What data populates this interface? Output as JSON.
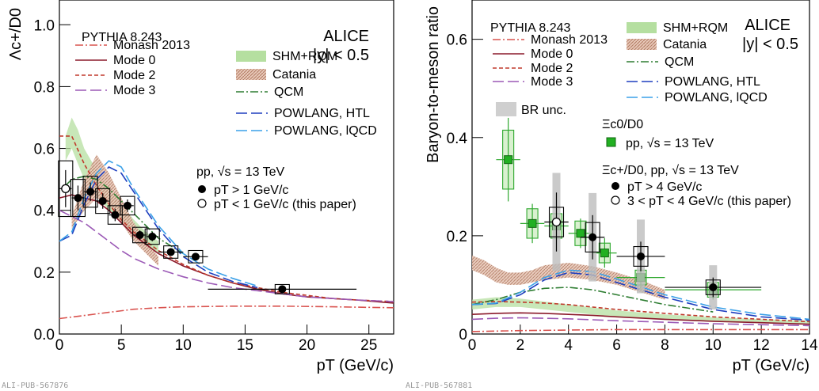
{
  "chart_data": [
    {
      "type": "line",
      "ylabel": "Λc+/D0",
      "xlabel": "pT (GeV/c)",
      "xlim": [
        0,
        27
      ],
      "ylim": [
        0,
        1.08
      ],
      "x_ticks": [
        "0",
        "5",
        "10",
        "15",
        "20",
        "25"
      ],
      "y_ticks": [
        "0.0",
        "0.2",
        "0.4",
        "0.6",
        "0.8",
        "1.0"
      ],
      "experiment": "ALICE",
      "rapidity": "|y| < 0.5",
      "generator_title": "PYTHIA 8.243",
      "dataset_label": "pp, √s = 13 TeV",
      "footer": "ALI-PUB-567876",
      "legend": [
        {
          "label": "Monash 2013",
          "color": "#d9534f",
          "style": "dashdot"
        },
        {
          "label": "Mode 0",
          "color": "#8b1a2b",
          "style": "solid"
        },
        {
          "label": "Mode 2",
          "color": "#c0392b",
          "style": "dashed"
        },
        {
          "label": "Mode 3",
          "color": "#9b59b6",
          "style": "longdash"
        },
        {
          "label": "SHM+RQM",
          "color": "#b5dfa0",
          "style": "band"
        },
        {
          "label": "Catania",
          "color": "#c9927a",
          "style": "hatched"
        },
        {
          "label": "QCM",
          "color": "#2e7d32",
          "style": "dashdot"
        },
        {
          "label": "POWLANG, HTL",
          "color": "#1f3fbf",
          "style": "longdash"
        },
        {
          "label": "POWLANG, lQCD",
          "color": "#3aa0e8",
          "style": "longdash"
        },
        {
          "label": "pT > 1 GeV/c",
          "marker": "filled-circle"
        },
        {
          "label": "pT < 1 GeV/c (this paper)",
          "marker": "open-circle"
        }
      ],
      "series": [
        {
          "name": "pT > 1 GeV/c",
          "kind": "points-filled",
          "x": [
            1.5,
            2.5,
            3.5,
            4.5,
            5.5,
            6.5,
            7.5,
            9,
            11,
            18
          ],
          "y": [
            0.44,
            0.46,
            0.43,
            0.385,
            0.415,
            0.32,
            0.315,
            0.265,
            0.25,
            0.145
          ],
          "xerr": [
            0.5,
            0.5,
            0.5,
            0.5,
            0.5,
            0.5,
            0.5,
            1,
            1,
            6
          ],
          "yerr": [
            0.04,
            0.03,
            0.025,
            0.02,
            0.02,
            0.015,
            0.015,
            0.012,
            0.012,
            0.01
          ],
          "syst": [
            0.06,
            0.05,
            0.04,
            0.03,
            0.03,
            0.025,
            0.025,
            0.02,
            0.02,
            0.015
          ]
        },
        {
          "name": "pT < 1 GeV/c (this paper)",
          "kind": "points-open",
          "x": [
            0.5
          ],
          "y": [
            0.47
          ],
          "xerr": [
            0.5
          ],
          "yerr": [
            0.06
          ],
          "syst": [
            0.09
          ]
        },
        {
          "name": "Monash 2013",
          "kind": "line",
          "x": [
            0,
            2,
            4,
            6,
            8,
            10,
            14,
            18,
            22,
            27
          ],
          "y": [
            0.05,
            0.06,
            0.07,
            0.08,
            0.085,
            0.088,
            0.09,
            0.09,
            0.088,
            0.085
          ]
        },
        {
          "name": "Mode 0",
          "kind": "line",
          "x": [
            0,
            1,
            2,
            3,
            4,
            5,
            6,
            8,
            10,
            12,
            14,
            16,
            18,
            20,
            22,
            24,
            27
          ],
          "y": [
            0.44,
            0.45,
            0.44,
            0.43,
            0.4,
            0.36,
            0.32,
            0.26,
            0.22,
            0.19,
            0.165,
            0.145,
            0.13,
            0.12,
            0.115,
            0.11,
            0.1
          ]
        },
        {
          "name": "Mode 2",
          "kind": "line",
          "x": [
            0,
            1,
            2,
            3,
            4,
            5,
            6,
            8,
            10,
            12,
            14,
            16,
            18,
            20,
            22,
            24,
            27
          ],
          "y": [
            0.64,
            0.64,
            0.55,
            0.48,
            0.42,
            0.37,
            0.33,
            0.27,
            0.225,
            0.19,
            0.165,
            0.15,
            0.135,
            0.125,
            0.115,
            0.11,
            0.105
          ]
        },
        {
          "name": "Mode 3",
          "kind": "line",
          "x": [
            0,
            1,
            2,
            3,
            4,
            5,
            6,
            8,
            10,
            12,
            14,
            16,
            18,
            20,
            22,
            24,
            27
          ],
          "y": [
            0.4,
            0.38,
            0.36,
            0.33,
            0.3,
            0.27,
            0.245,
            0.21,
            0.185,
            0.165,
            0.15,
            0.14,
            0.13,
            0.12,
            0.115,
            0.11,
            0.105
          ]
        },
        {
          "name": "SHM+RQM",
          "kind": "band",
          "x": [
            0.5,
            1,
            1.5,
            2,
            3,
            4,
            5,
            6,
            7,
            8
          ],
          "ylo": [
            0.56,
            0.6,
            0.55,
            0.5,
            0.45,
            0.4,
            0.36,
            0.32,
            0.29,
            0.26
          ],
          "yhi": [
            0.64,
            0.7,
            0.66,
            0.6,
            0.53,
            0.47,
            0.42,
            0.37,
            0.33,
            0.3
          ]
        },
        {
          "name": "Catania",
          "kind": "band",
          "x": [
            1,
            2,
            3,
            4,
            5,
            6,
            7,
            8
          ],
          "ylo": [
            0.34,
            0.4,
            0.44,
            0.42,
            0.36,
            0.3,
            0.26,
            0.22
          ],
          "yhi": [
            0.38,
            0.5,
            0.58,
            0.52,
            0.44,
            0.36,
            0.3,
            0.25
          ]
        },
        {
          "name": "QCM",
          "kind": "line",
          "x": [
            0.5,
            1,
            2,
            3,
            4,
            5,
            6,
            8,
            10
          ],
          "y": [
            0.48,
            0.5,
            0.51,
            0.5,
            0.47,
            0.43,
            0.39,
            0.31,
            0.26
          ]
        },
        {
          "name": "POWLANG, HTL",
          "kind": "line",
          "x": [
            0,
            1,
            2,
            3,
            4,
            5,
            6,
            8,
            10,
            12,
            14,
            16
          ],
          "y": [
            0.3,
            0.32,
            0.42,
            0.5,
            0.54,
            0.52,
            0.46,
            0.34,
            0.25,
            0.2,
            0.17,
            0.15
          ]
        },
        {
          "name": "POWLANG, lQCD",
          "kind": "line",
          "x": [
            0,
            1,
            2,
            3,
            4,
            5,
            6,
            8,
            10,
            12,
            14,
            16
          ],
          "y": [
            0.3,
            0.33,
            0.44,
            0.52,
            0.56,
            0.54,
            0.47,
            0.35,
            0.26,
            0.21,
            0.18,
            0.155
          ]
        }
      ]
    },
    {
      "type": "line",
      "ylabel": "Baryon-to-meson ratio",
      "xlabel": "pT (GeV/c)",
      "xlim": [
        0,
        14
      ],
      "ylim": [
        0,
        0.68
      ],
      "x_ticks": [
        "0",
        "2",
        "4",
        "6",
        "8",
        "10",
        "12",
        "14"
      ],
      "y_ticks": [
        "0",
        "0.2",
        "0.4",
        "0.6"
      ],
      "experiment": "ALICE",
      "rapidity": "|y| < 0.5",
      "generator_title": "PYTHIA 8.243",
      "br_label": "BR unc.",
      "xi0_title": "Ξc0/D0",
      "xi0_label": "pp, √s = 13 TeV",
      "xiplus_title": "Ξc+/D0, pp, √s = 13 TeV",
      "footer": "ALI-PUB-567881",
      "legend": [
        {
          "label": "Monash 2013",
          "color": "#d9534f",
          "style": "dashdot"
        },
        {
          "label": "Mode 0",
          "color": "#8b1a2b",
          "style": "solid"
        },
        {
          "label": "Mode 2",
          "color": "#c0392b",
          "style": "dashed"
        },
        {
          "label": "Mode 3",
          "color": "#9b59b6",
          "style": "longdash"
        },
        {
          "label": "SHM+RQM",
          "color": "#b5dfa0",
          "style": "band"
        },
        {
          "label": "Catania",
          "color": "#c9927a",
          "style": "hatched"
        },
        {
          "label": "QCM",
          "color": "#2e7d32",
          "style": "dashdot"
        },
        {
          "label": "POWLANG, HTL",
          "color": "#1f3fbf",
          "style": "longdash"
        },
        {
          "label": "POWLANG, lQCD",
          "color": "#3aa0e8",
          "style": "longdash"
        },
        {
          "label": "pT > 4 GeV/c",
          "marker": "filled-circle"
        },
        {
          "label": "3 < pT < 4 GeV/c (this paper)",
          "marker": "open-circle"
        }
      ],
      "series": [
        {
          "name": "pp, √s = 13 TeV",
          "kind": "points-square",
          "x": [
            1.5,
            2.5,
            3.5,
            4.5,
            5.5,
            7,
            10
          ],
          "y": [
            0.355,
            0.225,
            0.22,
            0.205,
            0.165,
            0.115,
            0.09
          ],
          "xerr": [
            0.5,
            0.5,
            0.5,
            0.5,
            0.5,
            1,
            2
          ],
          "yerr": [
            0.085,
            0.04,
            0.03,
            0.03,
            0.03,
            0.025,
            0.02
          ],
          "syst": [
            0.06,
            0.03,
            0.025,
            0.025,
            0.02,
            0.015,
            0.015
          ]
        },
        {
          "name": "pT > 4 GeV/c",
          "kind": "points-filled",
          "x": [
            5,
            7,
            10
          ],
          "y": [
            0.197,
            0.158,
            0.095
          ],
          "xerr": [
            0.5,
            1,
            2
          ],
          "yerr": [
            0.045,
            0.03,
            0.02
          ],
          "syst": [
            0.03,
            0.02,
            0.015
          ],
          "br": [
            0.09,
            0.075,
            0.045
          ]
        },
        {
          "name": "3 < pT < 4 GeV/c (this paper)",
          "kind": "points-open",
          "x": [
            3.5
          ],
          "y": [
            0.228
          ],
          "xerr": [
            0.5
          ],
          "yerr": [
            0.06
          ],
          "syst": [
            0.03
          ],
          "br": [
            0.1
          ]
        },
        {
          "name": "Monash 2013",
          "kind": "line",
          "x": [
            0,
            2,
            4,
            6,
            8,
            10,
            12,
            14
          ],
          "y": [
            0.005,
            0.007,
            0.008,
            0.009,
            0.009,
            0.009,
            0.009,
            0.009
          ]
        },
        {
          "name": "Mode 0",
          "kind": "line",
          "x": [
            0,
            1,
            2,
            3,
            4,
            5,
            6,
            8,
            10,
            12,
            14
          ],
          "y": [
            0.04,
            0.042,
            0.043,
            0.042,
            0.04,
            0.038,
            0.035,
            0.03,
            0.026,
            0.023,
            0.02
          ]
        },
        {
          "name": "Mode 2",
          "kind": "line",
          "x": [
            0,
            1,
            2,
            3,
            4,
            5,
            6,
            8,
            10,
            12,
            14
          ],
          "y": [
            0.065,
            0.066,
            0.065,
            0.063,
            0.06,
            0.055,
            0.05,
            0.042,
            0.035,
            0.03,
            0.025
          ]
        },
        {
          "name": "Mode 3",
          "kind": "line",
          "x": [
            0,
            1,
            2,
            3,
            4,
            5,
            6,
            8,
            10,
            12,
            14
          ],
          "y": [
            0.03,
            0.032,
            0.033,
            0.032,
            0.031,
            0.029,
            0.027,
            0.024,
            0.021,
            0.019,
            0.017
          ]
        },
        {
          "name": "SHM+RQM",
          "kind": "band",
          "x": [
            0,
            1,
            2,
            3,
            4,
            5,
            6,
            8,
            10,
            12,
            14
          ],
          "ylo": [
            0.05,
            0.055,
            0.055,
            0.05,
            0.045,
            0.04,
            0.035,
            0.03,
            0.025,
            0.022,
            0.02
          ],
          "yhi": [
            0.07,
            0.075,
            0.072,
            0.066,
            0.06,
            0.054,
            0.048,
            0.04,
            0.034,
            0.03,
            0.027
          ]
        },
        {
          "name": "Catania",
          "kind": "band",
          "x": [
            0,
            0.5,
            1,
            1.5,
            2,
            2.5,
            3,
            4,
            5,
            6,
            7,
            8
          ],
          "ylo": [
            0.13,
            0.12,
            0.105,
            0.1,
            0.1,
            0.105,
            0.11,
            0.115,
            0.11,
            0.1,
            0.085,
            0.07
          ],
          "yhi": [
            0.16,
            0.15,
            0.135,
            0.125,
            0.125,
            0.13,
            0.14,
            0.145,
            0.138,
            0.125,
            0.11,
            0.09
          ]
        },
        {
          "name": "QCM",
          "kind": "line",
          "x": [
            0,
            1,
            2,
            3,
            4,
            5,
            6,
            8,
            10
          ],
          "y": [
            0.06,
            0.07,
            0.085,
            0.093,
            0.095,
            0.09,
            0.08,
            0.06,
            0.045
          ]
        },
        {
          "name": "POWLANG, HTL",
          "kind": "line",
          "x": [
            0,
            1,
            2,
            3,
            4,
            5,
            6,
            8,
            10,
            12,
            14
          ],
          "y": [
            0.06,
            0.062,
            0.08,
            0.11,
            0.125,
            0.12,
            0.105,
            0.075,
            0.05,
            0.035,
            0.028
          ]
        },
        {
          "name": "POWLANG, lQCD",
          "kind": "line",
          "x": [
            0,
            1,
            2,
            3,
            4,
            5,
            6,
            8,
            10,
            12,
            14
          ],
          "y": [
            0.06,
            0.063,
            0.085,
            0.115,
            0.13,
            0.127,
            0.112,
            0.08,
            0.055,
            0.04,
            0.03
          ]
        }
      ]
    }
  ]
}
